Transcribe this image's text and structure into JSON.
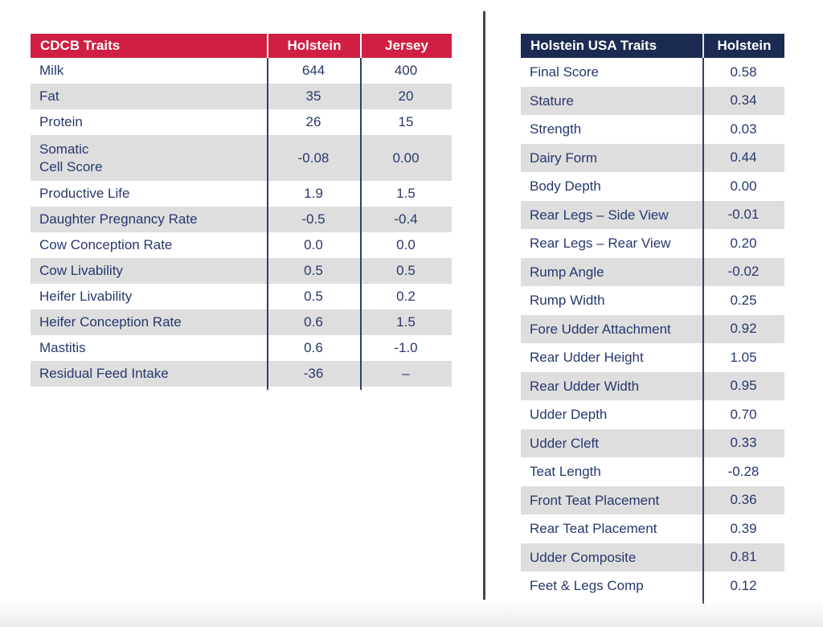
{
  "colors": {
    "left_header_bg": "#d01f42",
    "right_header_bg": "#1c2b52",
    "header_text": "#ffffff",
    "body_text": "#27386d",
    "alt_row_bg": "#dedede",
    "column_rule": "#2e3f70",
    "divider": "#47474a"
  },
  "left_table": {
    "title": "CDCB Traits",
    "columns": [
      "Holstein",
      "Jersey"
    ],
    "rows": [
      {
        "trait": "Milk",
        "values": [
          "644",
          "400"
        ]
      },
      {
        "trait": "Fat",
        "values": [
          "35",
          "20"
        ]
      },
      {
        "trait": "Protein",
        "values": [
          "26",
          "15"
        ]
      },
      {
        "trait": "Somatic\nCell Score",
        "values": [
          "-0.08",
          "0.00"
        ],
        "two_line": true
      },
      {
        "trait": "Productive Life",
        "values": [
          "1.9",
          "1.5"
        ]
      },
      {
        "trait": "Daughter Pregnancy Rate",
        "values": [
          "-0.5",
          "-0.4"
        ]
      },
      {
        "trait": "Cow Conception Rate",
        "values": [
          "0.0",
          "0.0"
        ]
      },
      {
        "trait": "Cow Livability",
        "values": [
          "0.5",
          "0.5"
        ]
      },
      {
        "trait": "Heifer Livability",
        "values": [
          "0.5",
          "0.2"
        ]
      },
      {
        "trait": "Heifer Conception Rate",
        "values": [
          "0.6",
          "1.5"
        ]
      },
      {
        "trait": "Mastitis",
        "values": [
          "0.6",
          "-1.0"
        ]
      },
      {
        "trait": "Residual Feed Intake",
        "values": [
          "-36",
          "–"
        ]
      }
    ]
  },
  "right_table": {
    "title": "Holstein USA Traits",
    "columns": [
      "Holstein"
    ],
    "rows": [
      {
        "trait": "Final Score",
        "values": [
          "0.58"
        ]
      },
      {
        "trait": "Stature",
        "values": [
          "0.34"
        ]
      },
      {
        "trait": "Strength",
        "values": [
          "0.03"
        ]
      },
      {
        "trait": "Dairy Form",
        "values": [
          "0.44"
        ]
      },
      {
        "trait": "Body Depth",
        "values": [
          "0.00"
        ]
      },
      {
        "trait": "Rear Legs – Side View",
        "values": [
          "-0.01"
        ]
      },
      {
        "trait": "Rear Legs – Rear View",
        "values": [
          "0.20"
        ]
      },
      {
        "trait": "Rump Angle",
        "values": [
          "-0.02"
        ]
      },
      {
        "trait": "Rump Width",
        "values": [
          "0.25"
        ]
      },
      {
        "trait": "Fore Udder Attachment",
        "values": [
          "0.92"
        ]
      },
      {
        "trait": "Rear Udder Height",
        "values": [
          "1.05"
        ]
      },
      {
        "trait": "Rear Udder Width",
        "values": [
          "0.95"
        ]
      },
      {
        "trait": "Udder Depth",
        "values": [
          "0.70"
        ]
      },
      {
        "trait": "Udder Cleft",
        "values": [
          "0.33"
        ]
      },
      {
        "trait": "Teat Length",
        "values": [
          "-0.28"
        ]
      },
      {
        "trait": "Front Teat Placement",
        "values": [
          "0.36"
        ]
      },
      {
        "trait": "Rear Teat Placement",
        "values": [
          "0.39"
        ]
      },
      {
        "trait": "Udder Composite",
        "values": [
          "0.81"
        ]
      },
      {
        "trait": "Feet & Legs Comp",
        "values": [
          "0.12"
        ]
      }
    ]
  }
}
